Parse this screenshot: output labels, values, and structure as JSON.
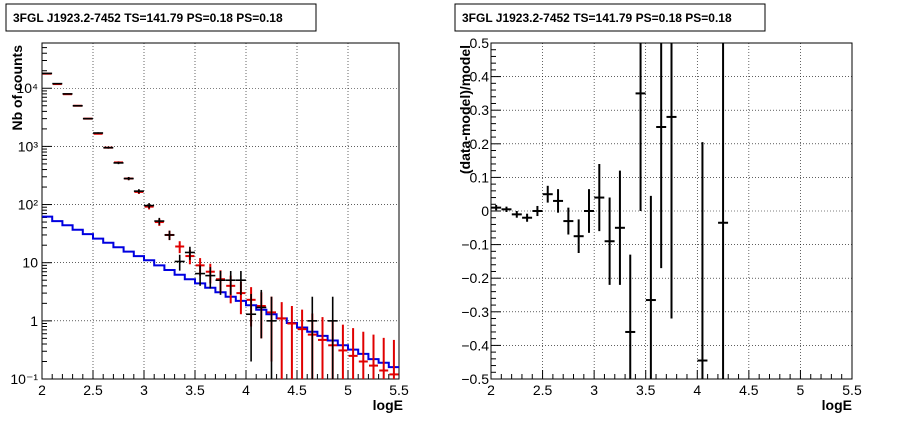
{
  "panels": [
    {
      "title": "3FGL J1923.2-7452 TS=141.79 PS=0.18 PS=0.18"
    },
    {
      "title": "3FGL J1923.2-7452 TS=141.79 PS=0.18 PS=0.18"
    }
  ],
  "colors": {
    "data": "#000000",
    "model_total": "#e00000",
    "model_source": "#0000e0",
    "grid": "#000000"
  },
  "chart_data": [
    {
      "type": "line",
      "title": "3FGL J1923.2-7452 TS=141.79 PS=0.18 PS=0.18",
      "xlabel": "logE",
      "ylabel": "Nb of counts",
      "yscale": "log",
      "xlim": [
        2,
        5.5
      ],
      "ylim": [
        0.1,
        60000
      ],
      "grid": true,
      "x_ticks": [
        "2",
        "2.5",
        "3",
        "3.5",
        "4",
        "4.5",
        "5",
        "5.5"
      ],
      "y_ticks": [
        "10⁻¹",
        "1",
        "10",
        "10²",
        "10³",
        "10⁴"
      ],
      "series": [
        {
          "kind": "points-with-errors",
          "x": [
            2.05,
            2.15,
            2.25,
            2.35,
            2.45,
            2.55,
            2.65,
            2.75,
            2.85,
            2.95,
            3.05,
            3.15,
            3.25,
            3.35,
            3.45,
            3.55,
            3.65,
            3.75,
            3.85,
            3.95,
            4.05,
            4.15,
            4.25,
            4.35,
            4.45,
            4.55,
            4.65,
            4.75,
            4.85,
            4.95,
            5.05,
            5.15,
            5.25,
            5.35,
            5.45
          ],
          "y": [
            18000,
            12000,
            8000,
            5000,
            3000,
            1700,
            950,
            520,
            280,
            170,
            96,
            52,
            30,
            10.5,
            15,
            6.5,
            6,
            5,
            5,
            5,
            1.3,
            1.7,
            1,
            0,
            0,
            0,
            1,
            0,
            1,
            0,
            0,
            0,
            0,
            0,
            0
          ],
          "err_lo": [
            150,
            120,
            100,
            80,
            60,
            45,
            35,
            25,
            18,
            14,
            10,
            7,
            5.5,
            3.2,
            3.8,
            2.5,
            2.4,
            2.2,
            2.2,
            2.2,
            1.1,
            1.2,
            1,
            0,
            0,
            0,
            1,
            0,
            1,
            0,
            0,
            0,
            0,
            0,
            0
          ],
          "err_hi": [
            150,
            120,
            100,
            80,
            60,
            45,
            35,
            25,
            18,
            14,
            10,
            7,
            5.5,
            3.2,
            3.8,
            2.5,
            2.4,
            2.2,
            2.2,
            2.2,
            1.6,
            1.7,
            1.6,
            0,
            0,
            0,
            1.6,
            0,
            1.6,
            0,
            0,
            0,
            0,
            0,
            0
          ]
        },
        {
          "kind": "points-with-errors",
          "x": [
            2.05,
            2.15,
            2.25,
            2.35,
            2.45,
            2.55,
            2.65,
            2.75,
            2.85,
            2.95,
            3.05,
            3.15,
            3.25,
            3.35,
            3.45,
            3.55,
            3.65,
            3.75,
            3.85,
            3.95,
            4.05,
            4.15,
            4.25,
            4.35,
            4.45,
            4.55,
            4.65,
            4.75,
            4.85,
            4.95,
            5.05,
            5.15,
            5.25,
            5.35,
            5.45
          ],
          "y": [
            17800,
            11800,
            7900,
            5000,
            3000,
            1650,
            950,
            530,
            280,
            165,
            92,
            50,
            30,
            19,
            13,
            9,
            7,
            5.2,
            4,
            3,
            2.3,
            1.8,
            1.4,
            1.1,
            0.9,
            0.72,
            0.58,
            0.47,
            0.38,
            0.31,
            0.25,
            0.2,
            0.17,
            0.14,
            0.12
          ],
          "err_lo": [
            140,
            110,
            90,
            70,
            55,
            40,
            31,
            23,
            17,
            13,
            9.6,
            7,
            5.5,
            4.4,
            3.6,
            3,
            2.6,
            2.2,
            2,
            1.7,
            1.5,
            1.3,
            1.2,
            1,
            0.9,
            0.72,
            0.58,
            0.47,
            0.38,
            0.31,
            0.25,
            0.2,
            0.17,
            0.14,
            0.12
          ],
          "err_hi": [
            140,
            110,
            90,
            70,
            55,
            40,
            31,
            23,
            17,
            13,
            9.6,
            7,
            5.5,
            4.4,
            3.6,
            3,
            2.6,
            2.2,
            2,
            1.7,
            1.5,
            1.3,
            1.2,
            1,
            0.9,
            0.84,
            0.76,
            0.69,
            0.62,
            0.55,
            0.5,
            0.45,
            0.41,
            0.37,
            0.35
          ]
        },
        {
          "kind": "step",
          "x_edges": [
            2.0,
            2.1,
            2.2,
            2.3,
            2.4,
            2.5,
            2.6,
            2.7,
            2.8,
            2.9,
            3.0,
            3.1,
            3.2,
            3.3,
            3.4,
            3.5,
            3.6,
            3.7,
            3.8,
            3.9,
            4.0,
            4.1,
            4.2,
            4.3,
            4.4,
            4.5,
            4.6,
            4.7,
            4.8,
            4.9,
            5.0,
            5.1,
            5.2,
            5.3,
            5.4,
            5.5
          ],
          "y": [
            62,
            52,
            44,
            37,
            31,
            26,
            22,
            18.5,
            15.5,
            13,
            11,
            9,
            7.5,
            6.2,
            5.2,
            4.4,
            3.7,
            3.1,
            2.6,
            2.2,
            1.85,
            1.55,
            1.3,
            1.1,
            0.92,
            0.77,
            0.65,
            0.55,
            0.46,
            0.38,
            0.32,
            0.27,
            0.22,
            0.19,
            0.16
          ]
        }
      ]
    },
    {
      "type": "scatter",
      "title": "3FGL J1923.2-7452 TS=141.79 PS=0.18 PS=0.18",
      "xlabel": "logE",
      "ylabel": "(data-model)/model",
      "xlim": [
        2,
        5.5
      ],
      "ylim": [
        -0.5,
        0.5
      ],
      "grid": true,
      "x_ticks": [
        "2",
        "2.5",
        "3",
        "3.5",
        "4",
        "4.5",
        "5",
        "5.5"
      ],
      "y_ticks": [
        "−0.5",
        "−0.4",
        "−0.3",
        "−0.2",
        "−0.1",
        "0",
        "0.1",
        "0.2",
        "0.3",
        "0.4",
        "0.5"
      ],
      "series": [
        {
          "kind": "points-with-errors",
          "x": [
            2.05,
            2.15,
            2.25,
            2.35,
            2.45,
            2.55,
            2.65,
            2.75,
            2.85,
            2.95,
            3.05,
            3.15,
            3.25,
            3.35,
            3.45,
            3.55,
            3.65,
            3.75,
            4.05,
            4.25
          ],
          "y": [
            0.01,
            0.005,
            -0.01,
            -0.02,
            0.0,
            0.05,
            0.03,
            -0.03,
            -0.075,
            0.0,
            0.04,
            -0.09,
            -0.05,
            -0.36,
            0.35,
            -0.265,
            0.25,
            0.28,
            -0.445,
            -0.035
          ],
          "err": [
            0.008,
            0.008,
            0.01,
            0.012,
            0.015,
            0.025,
            0.035,
            0.04,
            0.05,
            0.065,
            0.1,
            0.13,
            0.17,
            0.23,
            0.35,
            0.31,
            0.42,
            0.6,
            0.65,
            0.75
          ]
        }
      ]
    }
  ]
}
